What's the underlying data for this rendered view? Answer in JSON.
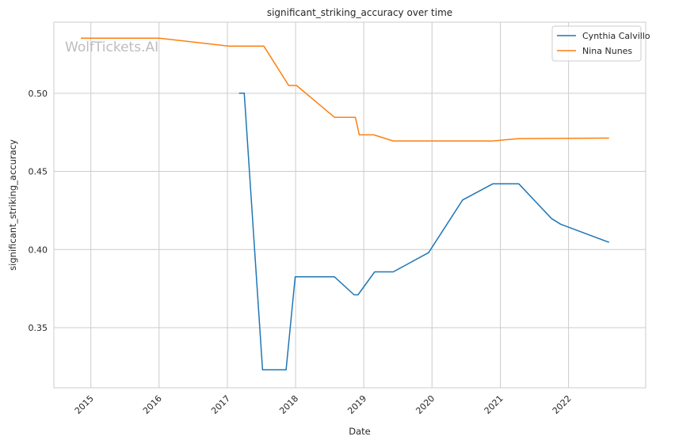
{
  "watermark": "WolfTickets.AI",
  "chart_data": {
    "type": "line",
    "title": "significant_striking_accuracy over time",
    "xlabel": "Date",
    "ylabel": "significant_striking_accuracy",
    "x_ticks": [
      "2015",
      "2016",
      "2017",
      "2018",
      "2019",
      "2020",
      "2021",
      "2022"
    ],
    "y_ticks": [
      "0.35",
      "0.40",
      "0.45",
      "0.50"
    ],
    "xlim": [
      "2014-06-17",
      "2023-02-18"
    ],
    "ylim": [
      0.3115,
      0.5455
    ],
    "grid": true,
    "legend_position": "top-right",
    "series": [
      {
        "name": "Cynthia Calvillo",
        "color": "#1f77b4",
        "points": [
          [
            "2017-03-04",
            0.5
          ],
          [
            "2017-04-01",
            0.5
          ],
          [
            "2017-07-08",
            0.323
          ],
          [
            "2017-11-11",
            0.323
          ],
          [
            "2017-12-30",
            0.3825
          ],
          [
            "2018-07-28",
            0.3825
          ],
          [
            "2018-11-10",
            0.371
          ],
          [
            "2018-12-01",
            0.371
          ],
          [
            "2019-02-28",
            0.3857
          ],
          [
            "2019-06-08",
            0.3857
          ],
          [
            "2019-12-14",
            0.398
          ],
          [
            "2020-06-13",
            0.4317
          ],
          [
            "2020-11-21",
            0.442
          ],
          [
            "2021-04-10",
            0.442
          ],
          [
            "2021-10-02",
            0.4198
          ],
          [
            "2021-11-20",
            0.4162
          ],
          [
            "2022-08-06",
            0.4046
          ]
        ]
      },
      {
        "name": "Nina Nunes",
        "color": "#ff7f0e",
        "points": [
          [
            "2014-11-08",
            0.5352
          ],
          [
            "2016-01-02",
            0.5352
          ],
          [
            "2017-01-07",
            0.5302
          ],
          [
            "2017-07-15",
            0.5302
          ],
          [
            "2017-11-25",
            0.505
          ],
          [
            "2018-01-06",
            0.505
          ],
          [
            "2018-07-28",
            0.4846
          ],
          [
            "2018-11-17",
            0.4846
          ],
          [
            "2018-12-08",
            0.4734
          ],
          [
            "2019-02-23",
            0.4734
          ],
          [
            "2019-06-08",
            0.4695
          ],
          [
            "2020-11-21",
            0.4695
          ],
          [
            "2021-04-10",
            0.471
          ],
          [
            "2022-08-06",
            0.4713
          ]
        ]
      }
    ]
  }
}
